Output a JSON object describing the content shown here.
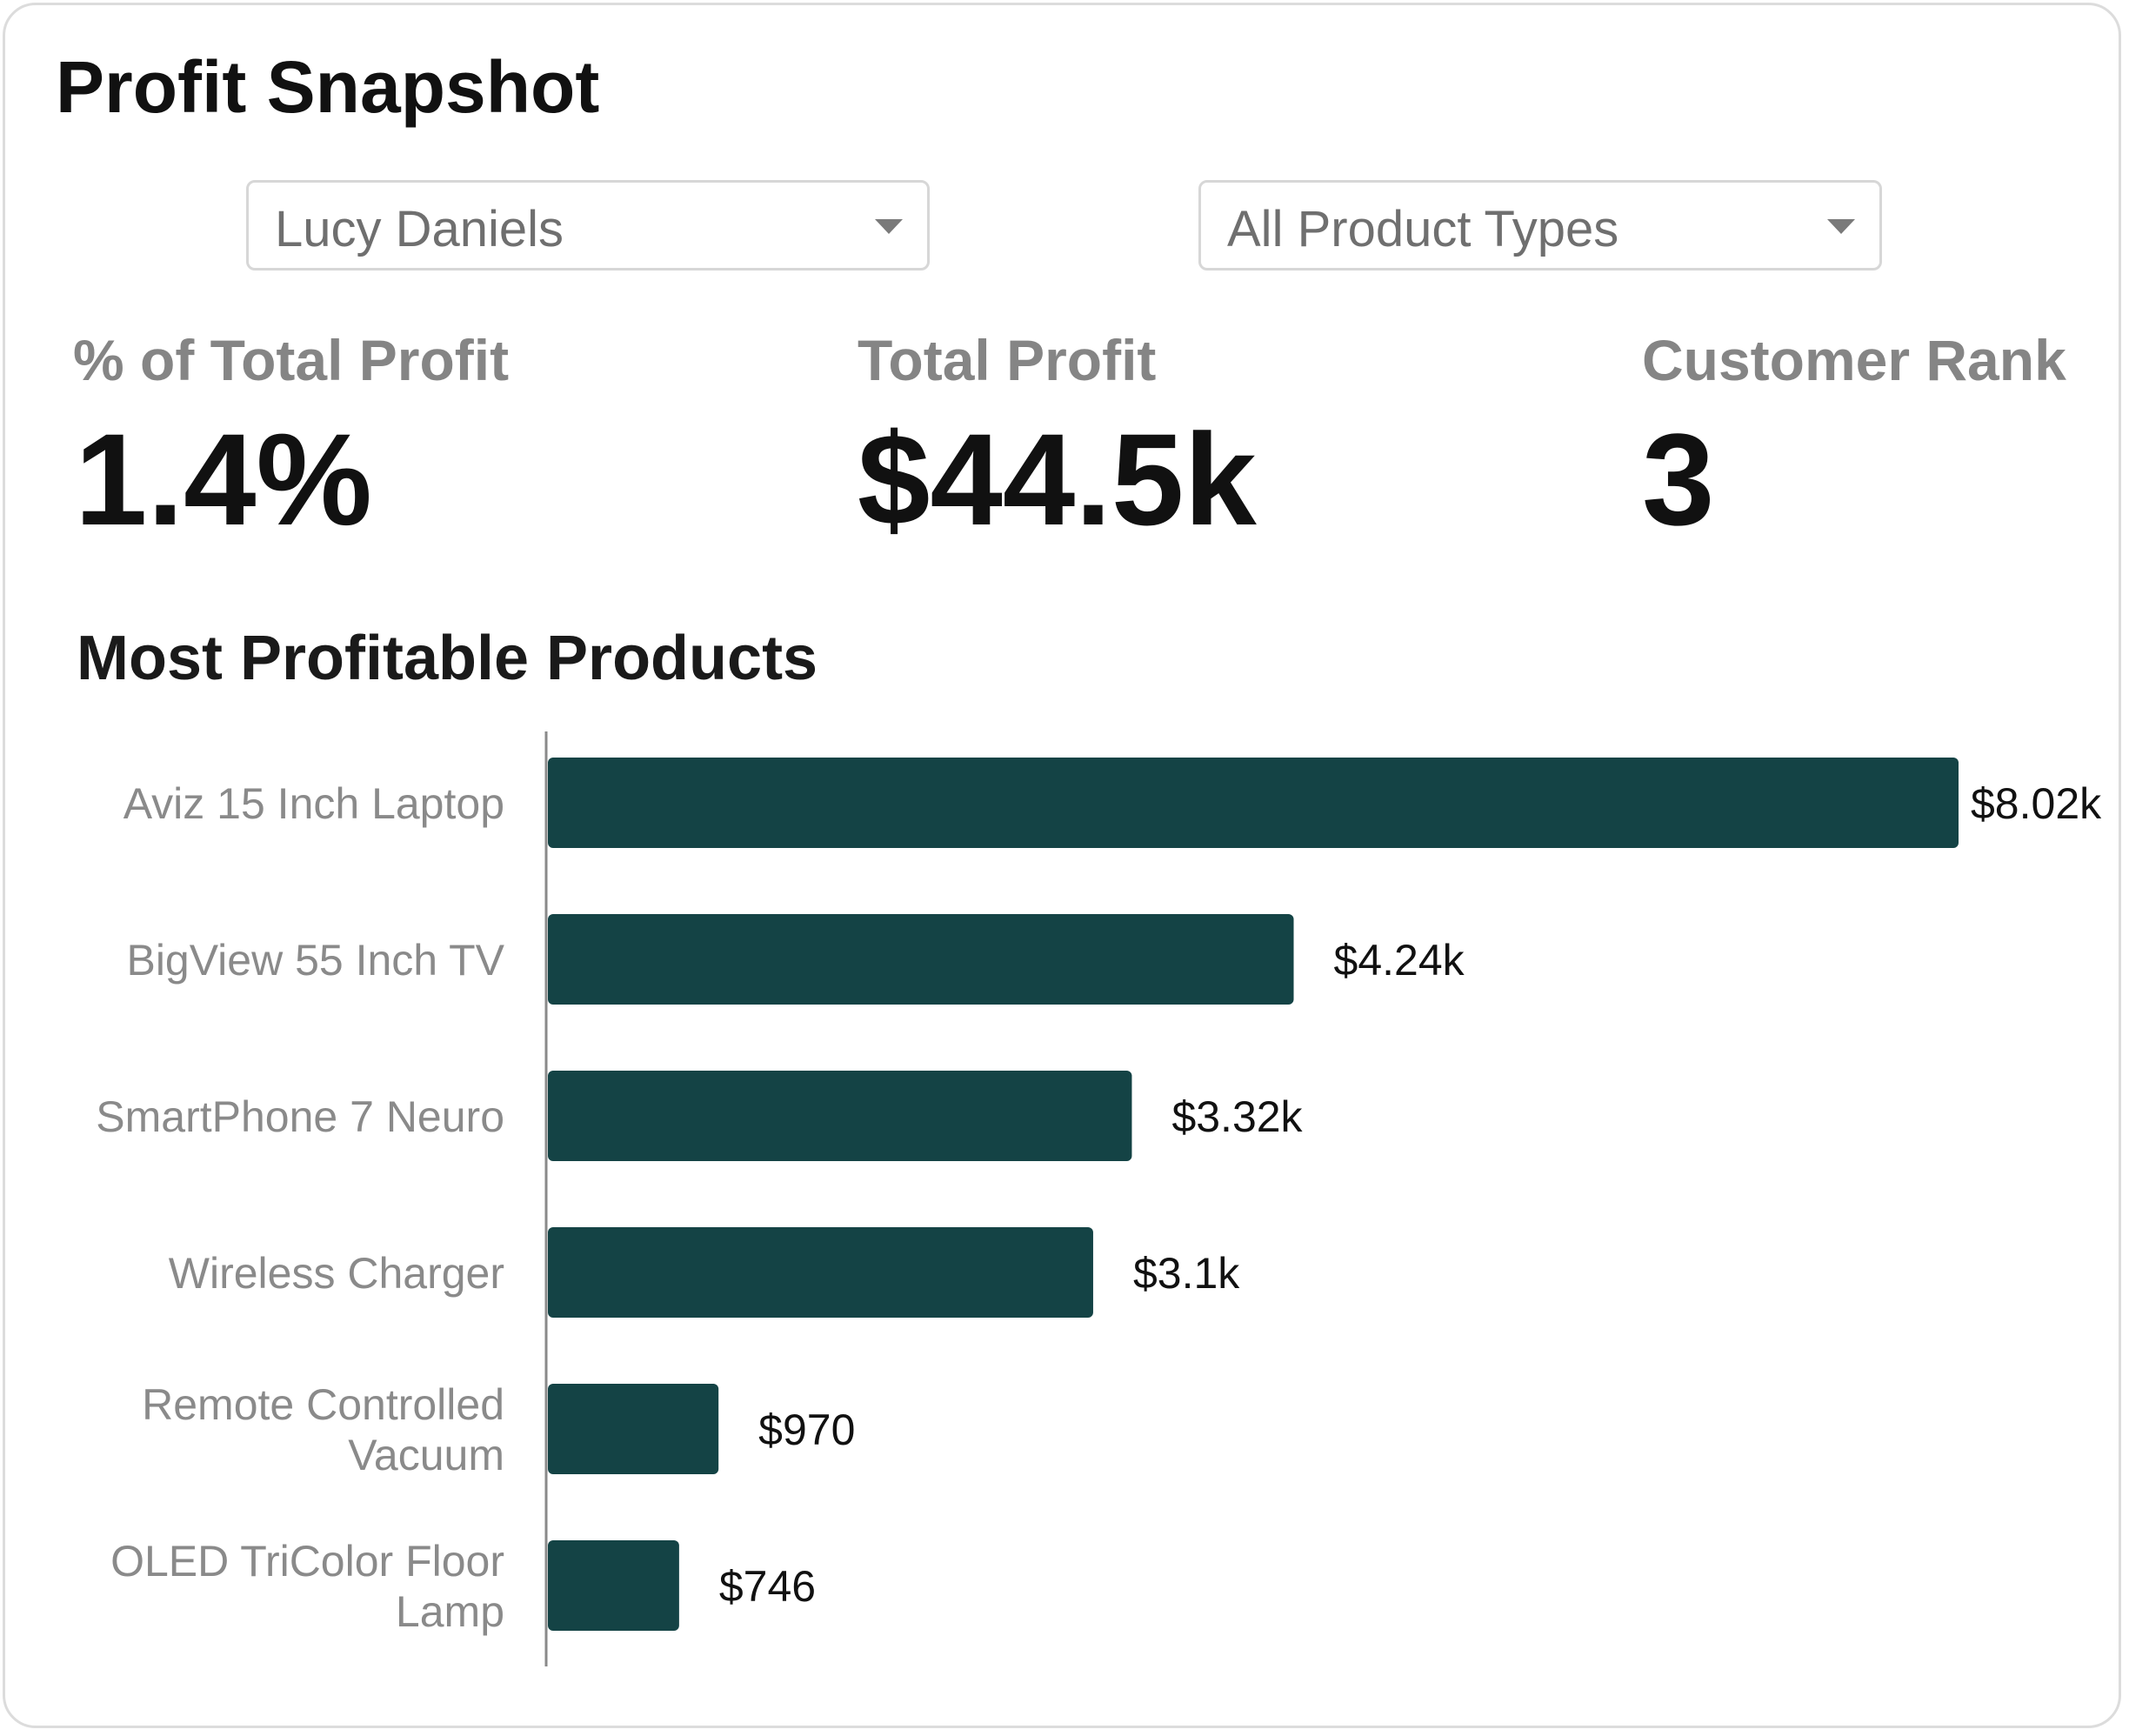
{
  "title": "Profit Snapshot",
  "filters": {
    "customer": "Lucy Daniels",
    "product_type": "All Product Types"
  },
  "kpis": {
    "pct_total_profit": {
      "label": "% of Total Profit",
      "value": "1.4%"
    },
    "total_profit": {
      "label": "Total Profit",
      "value": "$44.5k"
    },
    "customer_rank": {
      "label": "Customer Rank",
      "value": "3"
    }
  },
  "colors": {
    "bar": "#144345",
    "axis": "#8a8a8a"
  },
  "chart_data": {
    "type": "bar",
    "orientation": "horizontal",
    "title": "Most Profitable Products",
    "categories": [
      [
        "Aviz 15 Inch Laptop"
      ],
      [
        "BigView 55 Inch TV"
      ],
      [
        "SmartPhone 7 Neuro"
      ],
      [
        "Wireless Charger"
      ],
      [
        "Remote Controlled",
        "Vacuum"
      ],
      [
        "OLED TriColor Floor",
        "Lamp"
      ]
    ],
    "values": [
      8020,
      4240,
      3320,
      3100,
      970,
      746
    ],
    "data_labels": [
      "$8.02k",
      "$4.24k",
      "$3.32k",
      "$3.1k",
      "$970",
      "$746"
    ],
    "xlim": [
      0,
      8020
    ]
  }
}
